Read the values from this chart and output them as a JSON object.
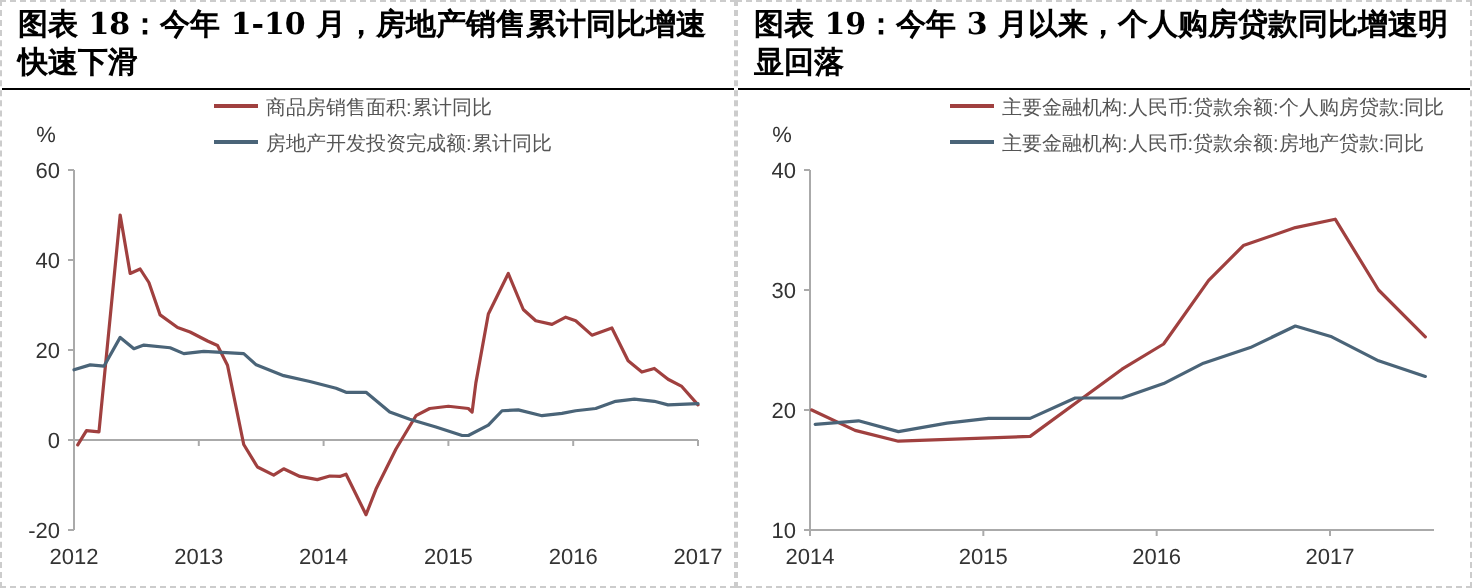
{
  "chart_data": [
    {
      "type": "line",
      "title": "图表 18：今年 1-10 月，房地产销售累计同比增速快速下滑",
      "ylabel": "%",
      "xlim": [
        2012,
        2017
      ],
      "xticks": [
        2012,
        2013,
        2014,
        2015,
        2016,
        2017
      ],
      "ylim": [
        -20,
        60
      ],
      "yticks": [
        -20,
        0,
        20,
        40,
        60
      ],
      "legend": "top",
      "series": [
        {
          "name": "商品房销售面积:累计同比",
          "color": "#a0403f",
          "x": [
            2012.03,
            2012.1,
            2012.2,
            2012.37,
            2012.45,
            2012.53,
            2012.6,
            2012.69,
            2012.83,
            2012.93,
            2013.07,
            2013.15,
            2013.23,
            2013.36,
            2013.47,
            2013.6,
            2013.68,
            2013.81,
            2013.95,
            2014.05,
            2014.13,
            2014.18,
            2014.34,
            2014.42,
            2014.58,
            2014.74,
            2014.85,
            2015.0,
            2015.16,
            2015.19,
            2015.22,
            2015.32,
            2015.48,
            2015.6,
            2015.7,
            2015.83,
            2015.94,
            2016.02,
            2016.15,
            2016.31,
            2016.44,
            2016.55,
            2016.65,
            2016.76,
            2016.87,
            2017.0
          ],
          "values": [
            -1.1,
            2.1,
            1.8,
            50,
            37,
            38,
            35,
            27.8,
            25,
            24,
            22,
            21,
            16.6,
            -1,
            -6,
            -7.8,
            -6.4,
            -8.1,
            -8.8,
            -8,
            -8.1,
            -7.6,
            -16.6,
            -10.9,
            -2,
            5.4,
            7,
            7.5,
            7,
            6.2,
            12.7,
            28,
            37,
            29,
            26.5,
            25.7,
            27.3,
            26.5,
            23.3,
            24.9,
            17.6,
            15.1,
            15.9,
            13.5,
            11.9,
            7.8
          ]
        },
        {
          "name": "房地产开发投资完成额:累计同比",
          "color": "#4a6478",
          "x": [
            2012.0,
            2012.13,
            2012.24,
            2012.37,
            2012.48,
            2012.56,
            2012.77,
            2012.88,
            2013.04,
            2013.36,
            2013.46,
            2013.68,
            2013.89,
            2014.1,
            2014.18,
            2014.34,
            2014.53,
            2014.69,
            2014.9,
            2015.11,
            2015.16,
            2015.32,
            2015.43,
            2015.56,
            2015.75,
            2015.91,
            2016.02,
            2016.18,
            2016.34,
            2016.49,
            2016.65,
            2016.76,
            2017.0
          ],
          "values": [
            15.6,
            16.7,
            16.4,
            22.8,
            20.3,
            21.1,
            20.5,
            19.2,
            19.7,
            19.2,
            16.7,
            14.3,
            13,
            11.5,
            10.6,
            10.6,
            6.2,
            4.6,
            2.9,
            1,
            1,
            3.3,
            6.5,
            6.7,
            5.4,
            5.9,
            6.5,
            7,
            8.6,
            9.1,
            8.6,
            7.8,
            8.1
          ]
        }
      ]
    },
    {
      "type": "line",
      "title": "图表 19：今年 3 月以来，个人购房贷款同比增速明显回落",
      "ylabel": "%",
      "xlim": [
        2014,
        2017.6
      ],
      "xticks": [
        2014,
        2015,
        2016,
        2017
      ],
      "ylim": [
        10,
        40
      ],
      "yticks": [
        10,
        20,
        30,
        40
      ],
      "legend": "top",
      "series": [
        {
          "name": "主要金融机构:人民币:贷款余额:个人购房贷款:同比",
          "color": "#a0403f",
          "x": [
            2014.01,
            2014.26,
            2014.51,
            2015.27,
            2015.8,
            2016.04,
            2016.3,
            2016.5,
            2016.8,
            2017.03,
            2017.28,
            2017.55
          ],
          "values": [
            20,
            18.3,
            17.4,
            17.8,
            23.4,
            25.5,
            30.8,
            33.7,
            35.2,
            35.9,
            30,
            26.1
          ]
        },
        {
          "name": "主要金融机构:人民币:贷款余额:房地产贷款:同比",
          "color": "#4a6478",
          "x": [
            2014.03,
            2014.28,
            2014.51,
            2014.79,
            2015.03,
            2015.27,
            2015.53,
            2015.8,
            2016.04,
            2016.27,
            2016.54,
            2016.8,
            2017.01,
            2017.28,
            2017.55
          ],
          "values": [
            18.8,
            19.1,
            18.2,
            18.9,
            19.3,
            19.3,
            21,
            21,
            22.2,
            23.9,
            25.2,
            27,
            26.1,
            24.1,
            22.8
          ]
        }
      ]
    }
  ]
}
